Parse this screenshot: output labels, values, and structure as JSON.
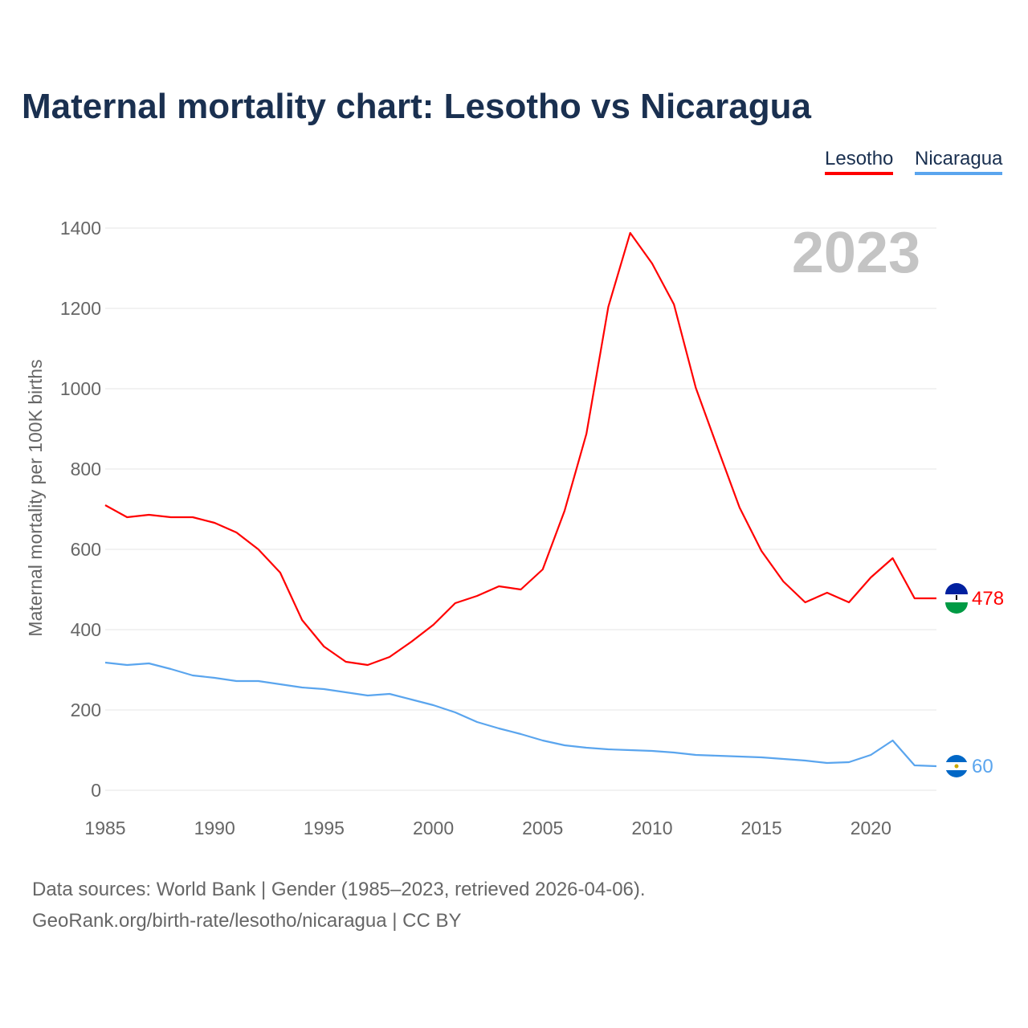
{
  "title": "Maternal mortality chart: Lesotho vs Nicaragua",
  "legend": [
    "Lesotho",
    "Nicaragua"
  ],
  "source_line1": "Data sources: World Bank | Gender (1985–2023, retrieved 2026-04-06).",
  "source_line2": "GeoRank.org/birth-rate/lesotho/nicaragua | CC BY",
  "chart_data": {
    "type": "line",
    "title": "Maternal mortality chart: Lesotho vs Nicaragua",
    "ylabel": "Maternal mortality per 100K births",
    "xlabel": "",
    "year_watermark": "2023",
    "x": [
      1985,
      1986,
      1987,
      1988,
      1989,
      1990,
      1991,
      1992,
      1993,
      1994,
      1995,
      1996,
      1997,
      1998,
      1999,
      2000,
      2001,
      2002,
      2003,
      2004,
      2005,
      2006,
      2007,
      2008,
      2009,
      2010,
      2011,
      2012,
      2013,
      2014,
      2015,
      2016,
      2017,
      2018,
      2019,
      2020,
      2021,
      2022,
      2023
    ],
    "xlim": [
      1985,
      2023
    ],
    "ylim": [
      0,
      1400
    ],
    "xticks": [
      1985,
      1990,
      1995,
      2000,
      2005,
      2010,
      2015,
      2020
    ],
    "yticks": [
      0,
      200,
      400,
      600,
      800,
      1000,
      1200,
      1400
    ],
    "grid": true,
    "legend_position": "top-right",
    "series": [
      {
        "name": "Lesotho",
        "color": "#ff0000",
        "end_label": "478",
        "values": [
          710,
          680,
          686,
          680,
          680,
          666,
          642,
          600,
          542,
          424,
          358,
          320,
          312,
          332,
          370,
          412,
          466,
          484,
          508,
          500,
          550,
          696,
          888,
          1204,
          1388,
          1312,
          1210,
          1002,
          852,
          704,
          596,
          520,
          468,
          492,
          468,
          530,
          578,
          478,
          478
        ]
      },
      {
        "name": "Nicaragua",
        "color": "#5aa5ee",
        "end_label": "60",
        "values": [
          318,
          312,
          316,
          302,
          286,
          280,
          272,
          272,
          264,
          256,
          252,
          244,
          236,
          240,
          226,
          212,
          194,
          170,
          154,
          140,
          124,
          112,
          106,
          102,
          100,
          98,
          94,
          88,
          86,
          84,
          82,
          78,
          74,
          68,
          70,
          88,
          124,
          62,
          60
        ]
      }
    ]
  }
}
